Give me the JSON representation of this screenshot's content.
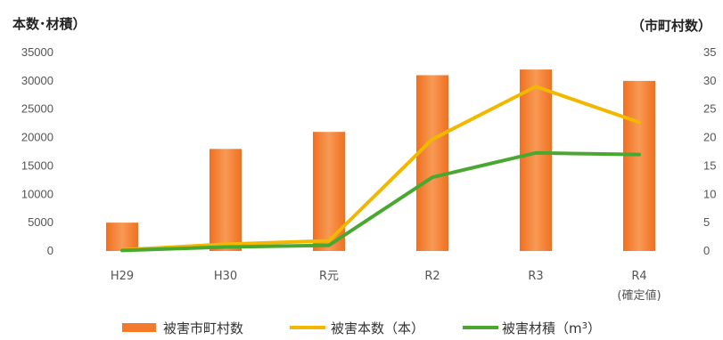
{
  "chart_data": {
    "type": "bar",
    "title_left": "本数･材積）",
    "title_right": "（市町村数）",
    "categories": [
      {
        "line1": "H29",
        "line2": ""
      },
      {
        "line1": "H30",
        "line2": ""
      },
      {
        "line1": "R元",
        "line2": ""
      },
      {
        "line1": "R2",
        "line2": ""
      },
      {
        "line1": "R3",
        "line2": ""
      },
      {
        "line1": "R4",
        "line2": "(確定値)"
      }
    ],
    "left_axis": {
      "range": [
        0,
        35000
      ],
      "ticks": [
        "0",
        "5000",
        "10000",
        "15000",
        "20000",
        "25000",
        "30000",
        "35000"
      ]
    },
    "right_axis": {
      "range": [
        0,
        35
      ],
      "ticks": [
        "0",
        "5",
        "10",
        "15",
        "20",
        "25",
        "30",
        "35"
      ]
    },
    "series": [
      {
        "name": "被害市町村数",
        "kind": "bar",
        "axis": "right",
        "color": "#f27a2a",
        "values": [
          5,
          18,
          21,
          31,
          32,
          30
        ]
      },
      {
        "name": "被害本数（本）",
        "kind": "line",
        "axis": "left",
        "color": "#f2b800",
        "values": [
          200,
          1200,
          1800,
          19700,
          29000,
          22700
        ]
      },
      {
        "name": "被害材積（m",
        "sup": "3",
        "name_end": "）",
        "kind": "line",
        "axis": "left",
        "color": "#4aa832",
        "values": [
          100,
          700,
          1000,
          13000,
          17300,
          17000
        ]
      }
    ],
    "grid": false,
    "legend_position": "bottom"
  }
}
